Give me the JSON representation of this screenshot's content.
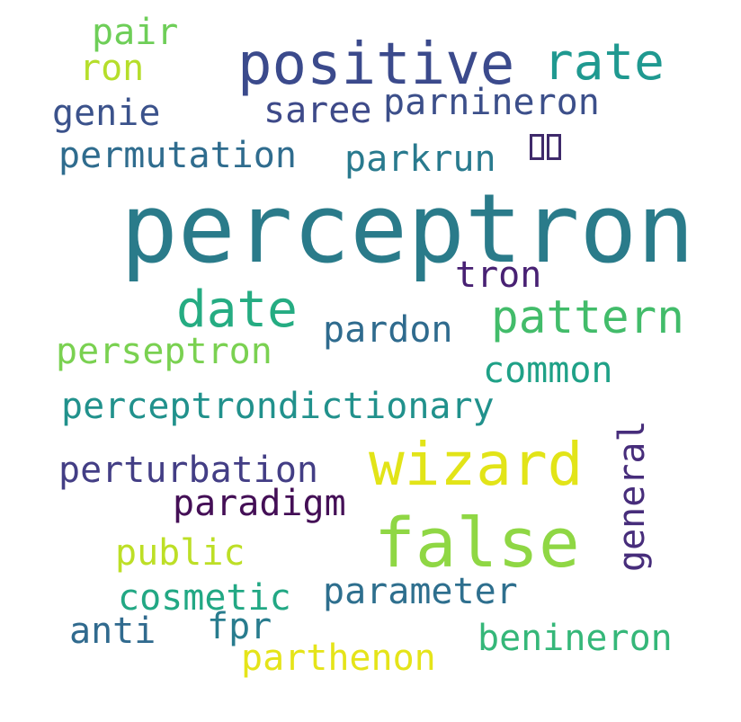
{
  "cloud": {
    "background": "#ffffff",
    "words": [
      {
        "id": "perceptron",
        "text": "perceptron",
        "color": "#2a7b8a"
      },
      {
        "id": "positive",
        "text": "positive",
        "color": "#3b4a8c"
      },
      {
        "id": "rate",
        "text": "rate",
        "color": "#1f9990"
      },
      {
        "id": "false",
        "text": "false",
        "color": "#8fd744"
      },
      {
        "id": "wizard",
        "text": "wizard",
        "color": "#e2e418"
      },
      {
        "id": "pattern",
        "text": "pattern",
        "color": "#42bc6a"
      },
      {
        "id": "date",
        "text": "date",
        "color": "#25ac82"
      },
      {
        "id": "general",
        "text": "general",
        "color": "#472d7b"
      },
      {
        "id": "pair",
        "text": "pair",
        "color": "#6ece58"
      },
      {
        "id": "ron",
        "text": "ron",
        "color": "#b5de2b"
      },
      {
        "id": "genie",
        "text": "genie",
        "color": "#3b528b"
      },
      {
        "id": "saree",
        "text": "saree",
        "color": "#3e4a89"
      },
      {
        "id": "parnineron",
        "text": "parnineron",
        "color": "#3c4f8a"
      },
      {
        "id": "permutation",
        "text": "permutation",
        "color": "#2f6c8e"
      },
      {
        "id": "parkrun",
        "text": "parkrun",
        "color": "#297a8e"
      },
      {
        "id": "tofu",
        "text": "□□",
        "color": "#3f2a6b"
      },
      {
        "id": "tron",
        "text": "tron",
        "color": "#482173"
      },
      {
        "id": "pardon",
        "text": "pardon",
        "color": "#2f6b8e"
      },
      {
        "id": "perseptron",
        "text": "perseptron",
        "color": "#7ad151"
      },
      {
        "id": "common",
        "text": "common",
        "color": "#1fa187"
      },
      {
        "id": "perceptrondictionary",
        "text": "perceptrondictionary",
        "color": "#21918c"
      },
      {
        "id": "perturbation",
        "text": "perturbation",
        "color": "#433e85"
      },
      {
        "id": "paradigm",
        "text": "paradigm",
        "color": "#440f56"
      },
      {
        "id": "public",
        "text": "public",
        "color": "#bddf26"
      },
      {
        "id": "cosmetic",
        "text": "cosmetic",
        "color": "#22a884"
      },
      {
        "id": "parameter",
        "text": "parameter",
        "color": "#2e6f8e"
      },
      {
        "id": "anti",
        "text": "anti",
        "color": "#306a8e"
      },
      {
        "id": "fpr",
        "text": "fpr",
        "color": "#287c8e"
      },
      {
        "id": "benineron",
        "text": "benineron",
        "color": "#35b779"
      },
      {
        "id": "parthenon",
        "text": "parthenon",
        "color": "#e5e419"
      }
    ]
  }
}
